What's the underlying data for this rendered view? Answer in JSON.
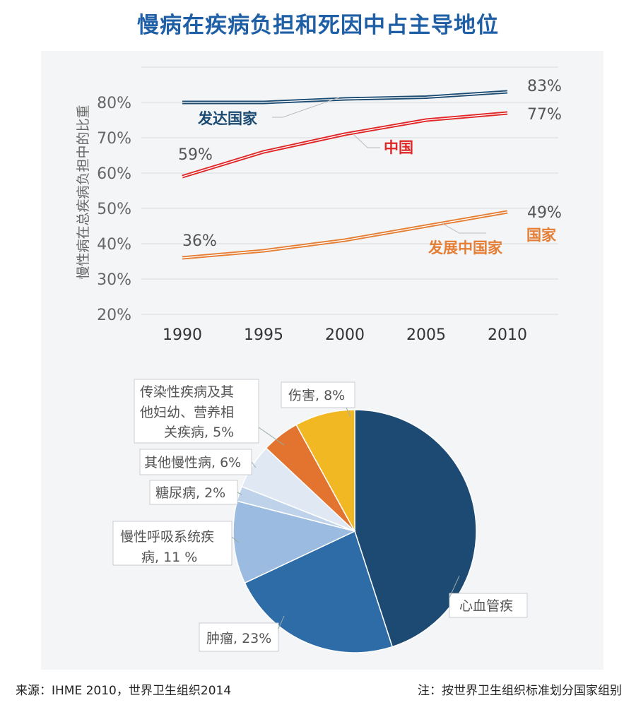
{
  "title": "慢病在疾病负担和死因中占主导地位",
  "footer": {
    "source": "来源：IHME 2010，世界卫生组织2014",
    "note": "注：按世界卫生组织标准划分国家组别"
  },
  "colors": {
    "title": "#1f5fa6",
    "developed": "#1b4a72",
    "china": "#e02626",
    "developing": "#e57d33",
    "cardio": "#1c4a73",
    "cancer": "#2e6ca8",
    "respiratory": "#9bbce0",
    "diabetes": "#bed3ea",
    "other_chronic": "#dfe8f3",
    "communicable": "#e27430",
    "injury": "#f2b823"
  },
  "chart_data": [
    {
      "type": "line",
      "ylabel": "慢性病在总疾病负担中的比重",
      "xlabel": "",
      "x": [
        "1990",
        "1995",
        "2000",
        "2005",
        "2010"
      ],
      "ylim": [
        20,
        90
      ],
      "yticks": [
        "20%",
        "30%",
        "40%",
        "50%",
        "60%",
        "70%",
        "80%"
      ],
      "grid": true,
      "series": [
        {
          "name": "发达国家",
          "values": [
            80,
            80,
            81,
            81.5,
            83
          ],
          "start_label": "",
          "end_label": "83%",
          "color": "#1b4a72"
        },
        {
          "name": "中国",
          "values": [
            59,
            66,
            71,
            75,
            77
          ],
          "start_label": "59%",
          "end_label": "77%",
          "color": "#e02626"
        },
        {
          "name_line1": "发展中国家",
          "name_line2": "国家",
          "values": [
            36,
            38,
            41,
            45,
            49
          ],
          "start_label": "36%",
          "end_label": "49%",
          "color": "#e57d33"
        }
      ]
    },
    {
      "type": "pie",
      "slices": [
        {
          "label": "心血管疾",
          "value": 45,
          "color": "#1c4a73"
        },
        {
          "label": "肿瘤, 23%",
          "value": 23,
          "color": "#2e6ca8"
        },
        {
          "label_lines": [
            "慢性呼吸系统疾",
            "病, 11 %"
          ],
          "value": 11,
          "color": "#9bbce0"
        },
        {
          "label": "糖尿病, 2%",
          "value": 2,
          "color": "#bed3ea"
        },
        {
          "label": "其他慢性病, 6%",
          "value": 6,
          "color": "#dfe8f3"
        },
        {
          "label_lines": [
            "传染性疾病及其",
            "他妇幼、营养相",
            "关疾病, 5%"
          ],
          "value": 5,
          "color": "#e27430"
        },
        {
          "label": "伤害, 8%",
          "value": 8,
          "color": "#f2b823"
        }
      ]
    }
  ]
}
